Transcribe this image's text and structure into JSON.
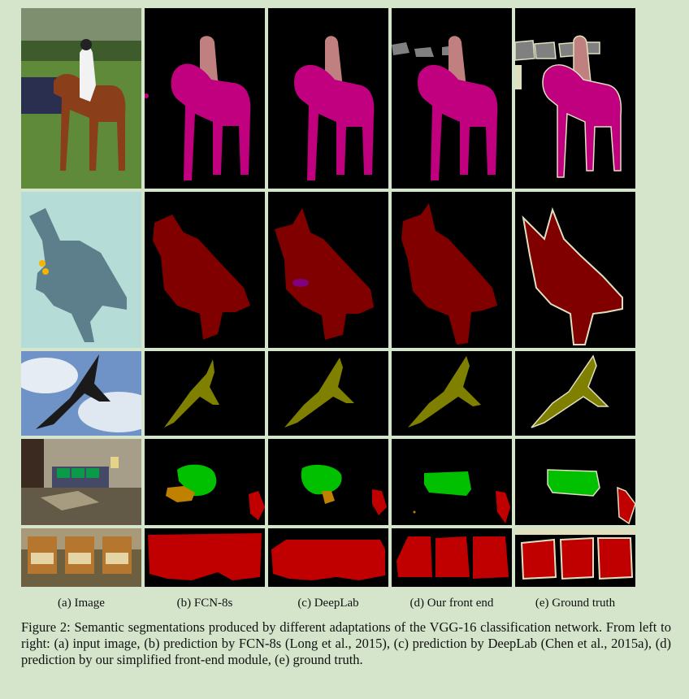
{
  "columns": [
    {
      "label": "(a) Image"
    },
    {
      "label": "(b) FCN-8s"
    },
    {
      "label": "(c) DeepLab"
    },
    {
      "label": "(d) Our front end"
    },
    {
      "label": "(e) Ground truth"
    }
  ],
  "rows": [
    {
      "subject": "horse and rider"
    },
    {
      "subject": "fighter jet"
    },
    {
      "subject": "flying bird"
    },
    {
      "subject": "living room with sofa"
    },
    {
      "subject": "row of chairs"
    }
  ],
  "colors": {
    "background": "#d4e5cb",
    "mask_background": "#000000",
    "horse": "#c0007f",
    "person": "#c08080",
    "aeroplane": "#800000",
    "bird": "#808000",
    "sofa": "#00c000",
    "table": "#c08000",
    "chair": "#c00000",
    "void": "#e0e0c0",
    "background_object": "#808080"
  },
  "caption": "Figure 2: Semantic segmentations produced by different adaptations of the VGG-16 classification network. From left to right: (a) input image, (b) prediction by FCN-8s (Long et al., 2015), (c) prediction by DeepLab (Chen et al., 2015a), (d) prediction by our simplified front-end module, (e) ground truth."
}
